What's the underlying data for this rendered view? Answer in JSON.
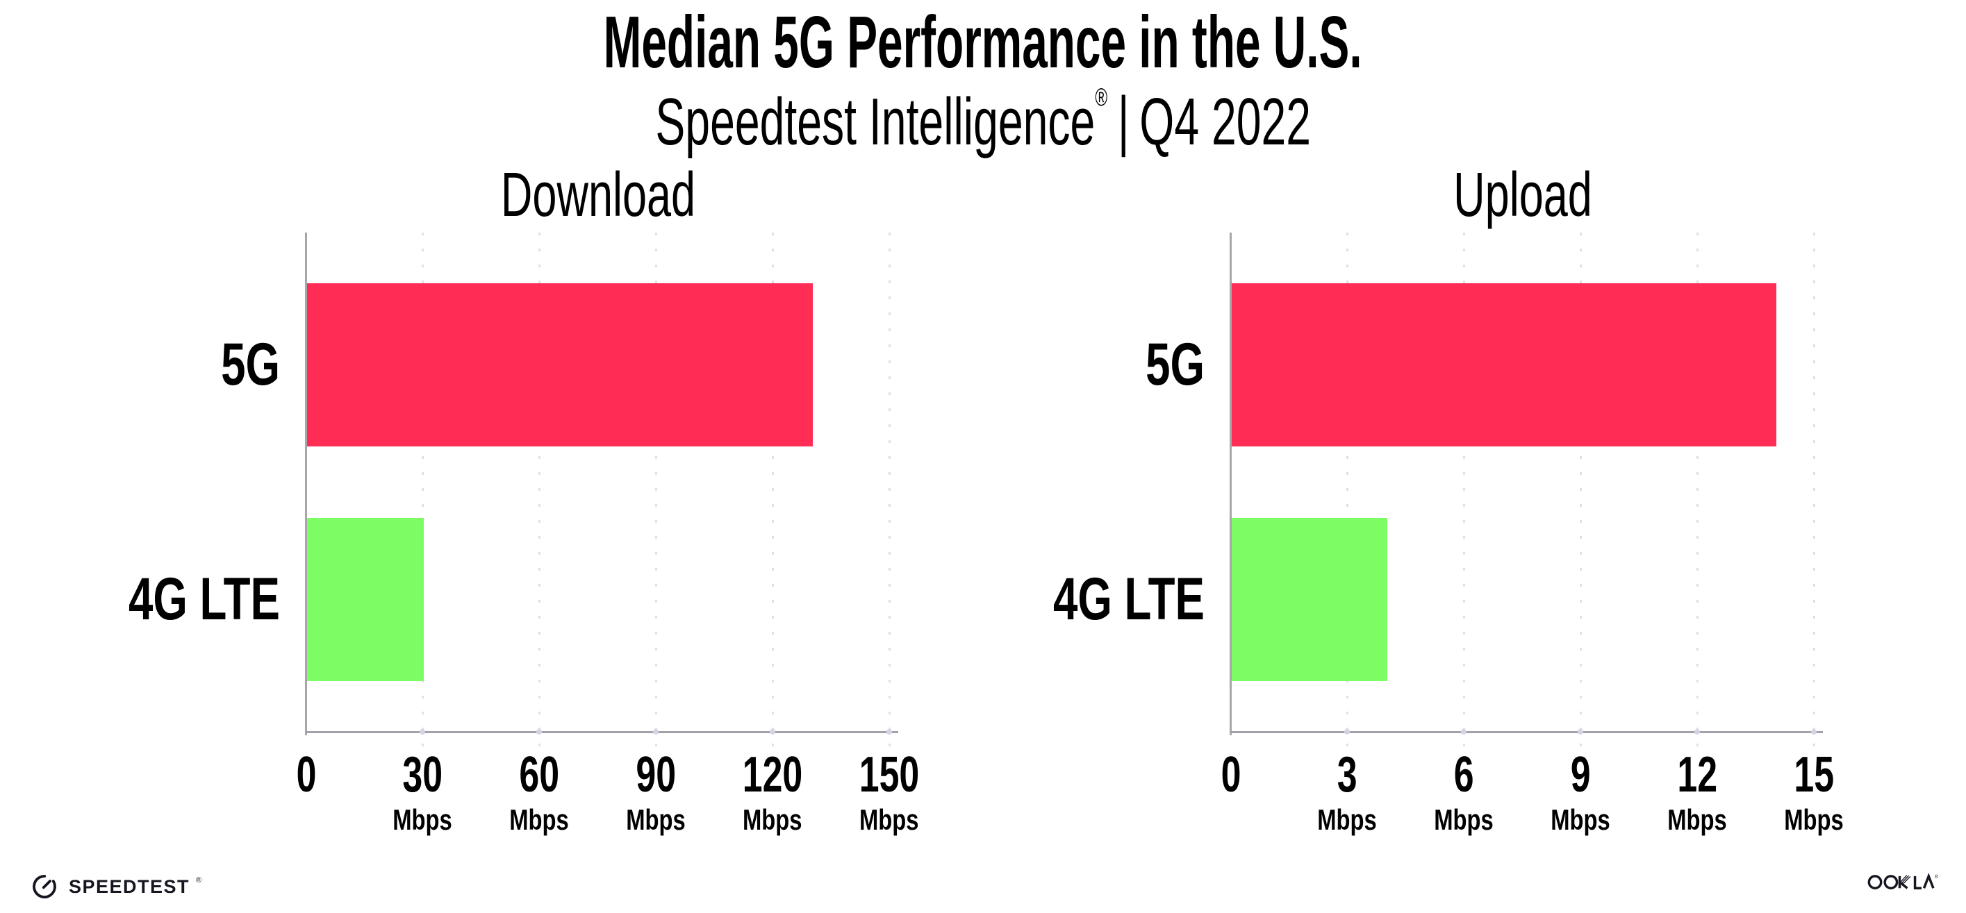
{
  "header": {
    "title": "Median 5G Performance in the U.S.",
    "subtitle": {
      "brand": "Speedtest Intelligence",
      "reg": "®",
      "separator": "|",
      "period": "Q4 2022"
    }
  },
  "charts": [
    {
      "title": "Download",
      "bars": [
        {
          "label": "5G",
          "value": 130,
          "unit": "Mbps",
          "color": "#FF2D55"
        },
        {
          "label": "4G LTE",
          "value": 30,
          "unit": "Mbps",
          "color": "#7DFC64"
        }
      ],
      "axis": {
        "max": 150,
        "ticks": [
          {
            "label": "0",
            "unit": ""
          },
          {
            "label": "30",
            "unit": "Mbps"
          },
          {
            "label": "60",
            "unit": "Mbps"
          },
          {
            "label": "90",
            "unit": "Mbps"
          },
          {
            "label": "120",
            "unit": "Mbps"
          },
          {
            "label": "150",
            "unit": "Mbps"
          }
        ]
      }
    },
    {
      "title": "Upload",
      "bars": [
        {
          "label": "5G",
          "value": 14,
          "unit": "Mbps",
          "color": "#FF2D55"
        },
        {
          "label": "4G LTE",
          "value": 4,
          "unit": "Mbps",
          "color": "#7DFC64"
        }
      ],
      "axis": {
        "max": 15,
        "ticks": [
          {
            "label": "0",
            "unit": ""
          },
          {
            "label": "3",
            "unit": "Mbps"
          },
          {
            "label": "6",
            "unit": "Mbps"
          },
          {
            "label": "9",
            "unit": "Mbps"
          },
          {
            "label": "12",
            "unit": "Mbps"
          },
          {
            "label": "15",
            "unit": "Mbps"
          }
        ]
      }
    }
  ],
  "footer": {
    "speedtest_wordmark": "SPEEDTEST",
    "speedtest_reg": "®",
    "ookla_wordmark": "OOKLA",
    "ookla_reg": "®"
  },
  "colors": {
    "bar_5g": "#FF2D55",
    "bar_4g_lte": "#7DFC64",
    "axis_line": "#a2a2a8",
    "gridline_dot": "#dfe0e8",
    "text": "#000000",
    "logo_ink": "#15161f"
  },
  "chart_data": [
    {
      "type": "bar",
      "orientation": "horizontal",
      "title": "Download",
      "categories": [
        "5G",
        "4G LTE"
      ],
      "values": [
        130,
        30
      ],
      "unit": "Mbps",
      "xlim": [
        0,
        150
      ],
      "xticks": [
        0,
        30,
        60,
        90,
        120,
        150
      ],
      "bar_colors": [
        "#FF2D55",
        "#7DFC64"
      ],
      "grid": "vertical-dotted",
      "legend": "none"
    },
    {
      "type": "bar",
      "orientation": "horizontal",
      "title": "Upload",
      "categories": [
        "5G",
        "4G LTE"
      ],
      "values": [
        14,
        4
      ],
      "unit": "Mbps",
      "xlim": [
        0,
        15
      ],
      "xticks": [
        0,
        3,
        6,
        9,
        12,
        15
      ],
      "bar_colors": [
        "#FF2D55",
        "#7DFC64"
      ],
      "grid": "vertical-dotted",
      "legend": "none"
    }
  ]
}
